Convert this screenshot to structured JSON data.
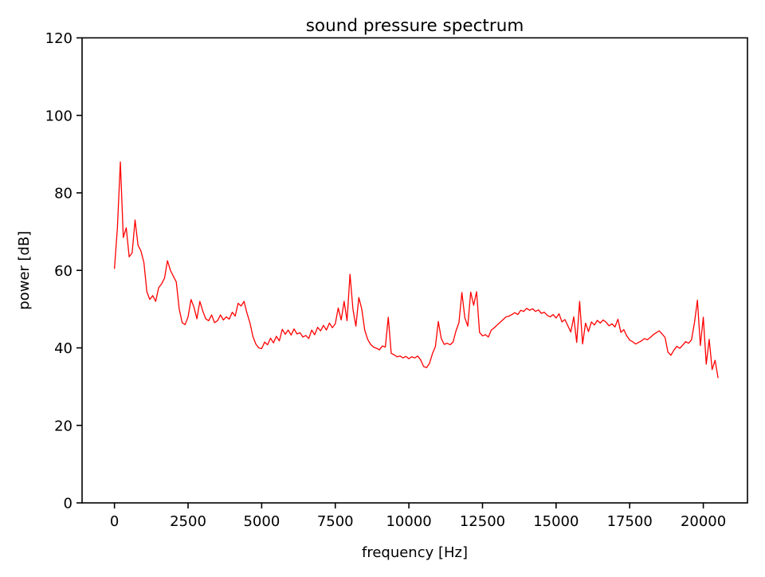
{
  "page": {
    "background": "#ffffff",
    "text_color": "#000000"
  },
  "chart_data": {
    "type": "line",
    "title": "sound pressure spectrum",
    "xlabel": "frequency [Hz]",
    "ylabel": "power [dB]",
    "xlim": [
      -1100,
      21500
    ],
    "ylim": [
      0,
      120
    ],
    "xticks": [
      0,
      2500,
      5000,
      7500,
      10000,
      12500,
      15000,
      17500,
      20000
    ],
    "yticks": [
      0,
      20,
      40,
      60,
      80,
      100,
      120
    ],
    "grid": false,
    "legend_position": "none",
    "axis_color": "#000000",
    "series": [
      {
        "name": "sound pressure spectrum",
        "color": "#ff0000",
        "x": [
          0,
          100,
          200,
          300,
          400,
          500,
          600,
          700,
          800,
          900,
          1000,
          1100,
          1200,
          1300,
          1400,
          1500,
          1600,
          1700,
          1800,
          1900,
          2000,
          2100,
          2200,
          2300,
          2400,
          2500,
          2600,
          2700,
          2800,
          2900,
          3000,
          3100,
          3200,
          3300,
          3400,
          3500,
          3600,
          3700,
          3800,
          3900,
          4000,
          4100,
          4200,
          4300,
          4400,
          4500,
          4600,
          4700,
          4800,
          4900,
          5000,
          5100,
          5200,
          5300,
          5400,
          5500,
          5600,
          5700,
          5800,
          5900,
          6000,
          6100,
          6200,
          6300,
          6400,
          6500,
          6600,
          6700,
          6800,
          6900,
          7000,
          7100,
          7200,
          7300,
          7400,
          7500,
          7600,
          7700,
          7800,
          7900,
          8000,
          8100,
          8200,
          8300,
          8400,
          8500,
          8600,
          8700,
          8800,
          8900,
          9000,
          9100,
          9200,
          9300,
          9400,
          9500,
          9600,
          9700,
          9800,
          9900,
          10000,
          10100,
          10200,
          10300,
          10400,
          10500,
          10600,
          10700,
          10800,
          10900,
          11000,
          11100,
          11200,
          11300,
          11400,
          11500,
          11600,
          11700,
          11800,
          11900,
          12000,
          12100,
          12200,
          12300,
          12400,
          12500,
          12600,
          12700,
          12800,
          12900,
          13000,
          13100,
          13200,
          13300,
          13400,
          13500,
          13600,
          13700,
          13800,
          13900,
          14000,
          14100,
          14200,
          14300,
          14400,
          14500,
          14600,
          14700,
          14800,
          14900,
          15000,
          15100,
          15200,
          15300,
          15400,
          15500,
          15600,
          15700,
          15800,
          15900,
          16000,
          16100,
          16200,
          16300,
          16400,
          16500,
          16600,
          16700,
          16800,
          16900,
          17000,
          17100,
          17200,
          17300,
          17400,
          17500,
          17600,
          17700,
          17800,
          17900,
          18000,
          18100,
          18200,
          18300,
          18400,
          18500,
          18600,
          18700,
          18800,
          18900,
          19000,
          19100,
          19200,
          19300,
          19400,
          19500,
          19600,
          19700,
          19800,
          19900,
          20000,
          20100,
          20200,
          20300,
          20400,
          20500
        ],
        "y": [
          60.5,
          71,
          88,
          68.5,
          71,
          63.5,
          64.5,
          73,
          66.5,
          65,
          62,
          54.5,
          52.5,
          53.5,
          52,
          55.5,
          56.5,
          58,
          62.5,
          60,
          58.5,
          57,
          50,
          46.5,
          46,
          48,
          52.5,
          50.5,
          47.5,
          52,
          49.5,
          47.5,
          47,
          48.5,
          46.5,
          47,
          48.5,
          47.2,
          48,
          47.4,
          49.2,
          48.2,
          51.5,
          50.8,
          52,
          49,
          46.5,
          43,
          41,
          40,
          39.8,
          41.5,
          40.8,
          42.5,
          41.3,
          43,
          41.8,
          44.8,
          43.5,
          44.6,
          43.3,
          44.9,
          43.6,
          43.9,
          42.8,
          43.2,
          42.4,
          44.6,
          43.4,
          45.3,
          44.4,
          45.8,
          44.6,
          46.4,
          45.2,
          46.2,
          50.3,
          47.2,
          52,
          47,
          59,
          50,
          45.6,
          53,
          50,
          44.6,
          42.2,
          40.9,
          40.2,
          39.9,
          39.5,
          40.5,
          40.2,
          47.9,
          38.6,
          38.2,
          37.7,
          37.9,
          37.4,
          37.8,
          37.2,
          37.7,
          37.4,
          37.9,
          36.9,
          35.2,
          34.9,
          36,
          38.5,
          40.3,
          46.8,
          42.4,
          40.9,
          41.2,
          40.8,
          41.5,
          44.4,
          46.5,
          54.3,
          47.8,
          45.6,
          54.4,
          51,
          54.5,
          44,
          43.1,
          43.4,
          42.8,
          44.6,
          45.2,
          45.9,
          46.6,
          47.3,
          48,
          48.2,
          48.6,
          49.1,
          48.6,
          49.7,
          49.4,
          50.2,
          49.7,
          50.1,
          49.4,
          49.8,
          48.9,
          49.2,
          48.4,
          48,
          48.6,
          47.7,
          48.8,
          46.7,
          47.3,
          45.7,
          44.1,
          48,
          41.4,
          52,
          41,
          46.4,
          44.2,
          46.7,
          45.9,
          47.1,
          46.4,
          47.2,
          46.6,
          45.7,
          46.2,
          45.4,
          47.4,
          44,
          44.7,
          43.1,
          42,
          41.6,
          41,
          41.4,
          41.8,
          42.4,
          42.1,
          42.7,
          43.4,
          43.9,
          44.4,
          43.6,
          42.7,
          38.9,
          38.1,
          39.4,
          40.4,
          39.9,
          40.7,
          41.6,
          41.2,
          42.1,
          46.5,
          52.3,
          40.6,
          47.9,
          35.8,
          42.2,
          34.4,
          36.8,
          32.3
        ]
      }
    ]
  }
}
